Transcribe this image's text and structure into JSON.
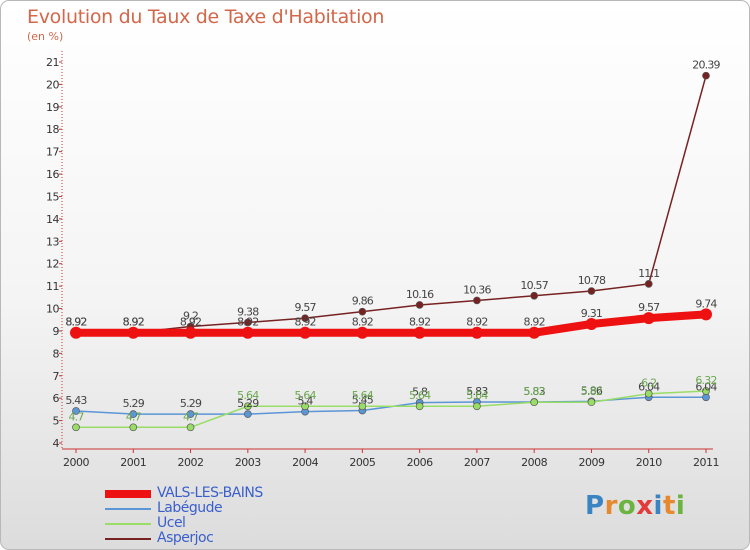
{
  "title": "Evolution du Taux de Taxe d'Habitation",
  "subtitle": "(en %)",
  "colors": {
    "title": "#d2674a",
    "axis": "#cc3333",
    "legend_text": "#3a5fcd"
  },
  "chart_data": {
    "type": "line",
    "title": "Evolution du Taux de Taxe d'Habitation",
    "subtitle": "(en %)",
    "xlabel": "",
    "ylabel": "",
    "ylim": [
      4,
      21
    ],
    "yticks": [
      4,
      5,
      6,
      7,
      8,
      9,
      10,
      11,
      12,
      13,
      14,
      15,
      16,
      17,
      18,
      19,
      20,
      21
    ],
    "categories": [
      "2000",
      "2001",
      "2002",
      "2003",
      "2004",
      "2005",
      "2006",
      "2007",
      "2008",
      "2009",
      "2010",
      "2011"
    ],
    "grid": false,
    "legend_position": "bottom-left",
    "series": [
      {
        "name": "VALS-LES-BAINS",
        "color": "#ee1111",
        "values": [
          8.92,
          8.92,
          8.92,
          8.92,
          8.92,
          8.92,
          8.92,
          8.92,
          8.92,
          9.31,
          9.57,
          9.74
        ],
        "labels": [
          "8.92",
          "8.92",
          "8.92",
          "8.92",
          "8.92",
          "8.92",
          "8.92",
          "8.92",
          "8.92",
          "9.31",
          "9.57",
          "9.74"
        ]
      },
      {
        "name": "Labégude",
        "color": "#5b96d6",
        "values": [
          5.43,
          5.29,
          5.29,
          5.29,
          5.4,
          5.45,
          5.8,
          5.83,
          5.83,
          5.86,
          6.04,
          6.04
        ],
        "labels": [
          "5.43",
          "5.29",
          "5.29",
          "5.29",
          "5.4",
          "5.45",
          "5.8",
          "5.83",
          "5.83",
          "5.86",
          "6.04",
          "6.04"
        ]
      },
      {
        "name": "Ucel",
        "color": "#99dd66",
        "values": [
          4.7,
          4.7,
          4.7,
          5.64,
          5.64,
          5.64,
          5.64,
          5.64,
          5.82,
          5.82,
          6.2,
          6.32
        ],
        "labels": [
          "4.7",
          "4.7",
          "4.7",
          "5.64",
          "5.64",
          "5.64",
          "5.64",
          "5.64",
          "5.82",
          "5.82",
          "6.2",
          "6.32"
        ]
      },
      {
        "name": "Asperjoc",
        "color": "#772222",
        "values": [
          8.92,
          8.92,
          9.2,
          9.38,
          9.57,
          9.86,
          10.16,
          10.36,
          10.57,
          10.78,
          11.1,
          20.39
        ],
        "labels": [
          "8.92",
          "8.92",
          "9.2",
          "9.38",
          "9.57",
          "9.86",
          "10.16",
          "10.36",
          "10.57",
          "10.78",
          "11.1",
          "20.39"
        ]
      }
    ]
  },
  "legend": [
    {
      "label": "VALS-LES-BAINS",
      "color": "#ee1111",
      "thickness": 8
    },
    {
      "label": "Labégude",
      "color": "#5b96d6",
      "thickness": 2
    },
    {
      "label": "Ucel",
      "color": "#99dd66",
      "thickness": 2
    },
    {
      "label": "Asperjoc",
      "color": "#772222",
      "thickness": 2
    }
  ],
  "logo": {
    "letters": [
      "P",
      "r",
      "o",
      "x",
      "i",
      "t",
      "i"
    ],
    "colors": [
      "#3b84c4",
      "#e6892e",
      "#6cb33f",
      "#e33b3b",
      "#3b84c4",
      "#e6892e",
      "#6cb33f"
    ]
  }
}
